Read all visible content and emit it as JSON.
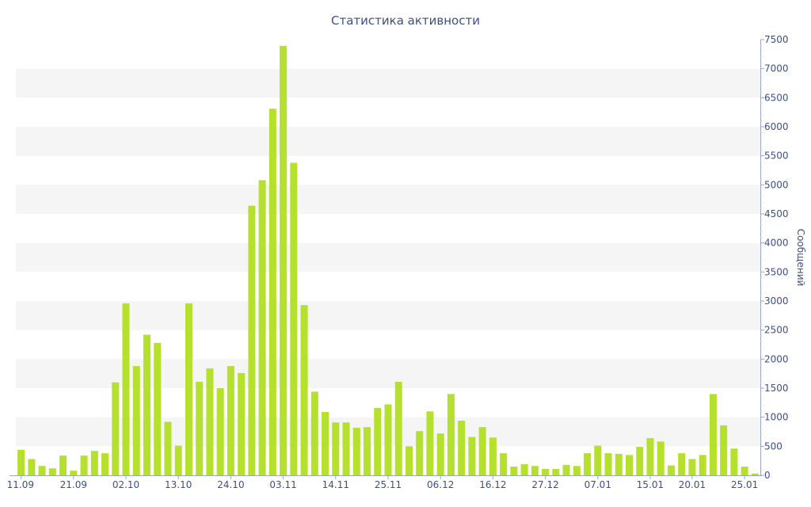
{
  "chart_data": {
    "type": "bar",
    "title": "Статистика активности",
    "ylabel": "Сообщений",
    "y_axis_side": "right",
    "ylim": [
      0,
      7500
    ],
    "yticks": [
      0,
      500,
      1000,
      1500,
      2000,
      2500,
      3000,
      3500,
      4000,
      4500,
      5000,
      5500,
      6000,
      6500,
      7000,
      7500
    ],
    "x_tick_labels": [
      "11.09",
      "21.09",
      "02.10",
      "13.10",
      "24.10",
      "03.11",
      "14.11",
      "25.11",
      "06.12",
      "16.12",
      "27.12",
      "07.01",
      "15.01",
      "20.01",
      "25.01"
    ],
    "x_tick_positions": [
      0,
      5,
      10,
      15,
      20,
      25,
      30,
      35,
      40,
      45,
      50,
      55,
      60,
      64,
      69
    ],
    "bar_color": "#b5e02c",
    "band_color": "#f5f5f5",
    "text_color": "#3f4f86",
    "values": [
      440,
      280,
      160,
      120,
      340,
      80,
      340,
      420,
      380,
      1600,
      2960,
      1880,
      2420,
      2280,
      920,
      510,
      2960,
      1610,
      1840,
      1500,
      1880,
      1760,
      4640,
      5080,
      6310,
      7390,
      5380,
      2930,
      1440,
      1090,
      910,
      910,
      820,
      830,
      1160,
      1220,
      1610,
      500,
      760,
      1100,
      720,
      1400,
      940,
      660,
      830,
      650,
      380,
      150,
      190,
      160,
      110,
      110,
      180,
      160,
      380,
      510,
      380,
      370,
      350,
      490,
      640,
      580,
      170,
      380,
      280,
      350,
      1400,
      860,
      460,
      150,
      30
    ]
  }
}
